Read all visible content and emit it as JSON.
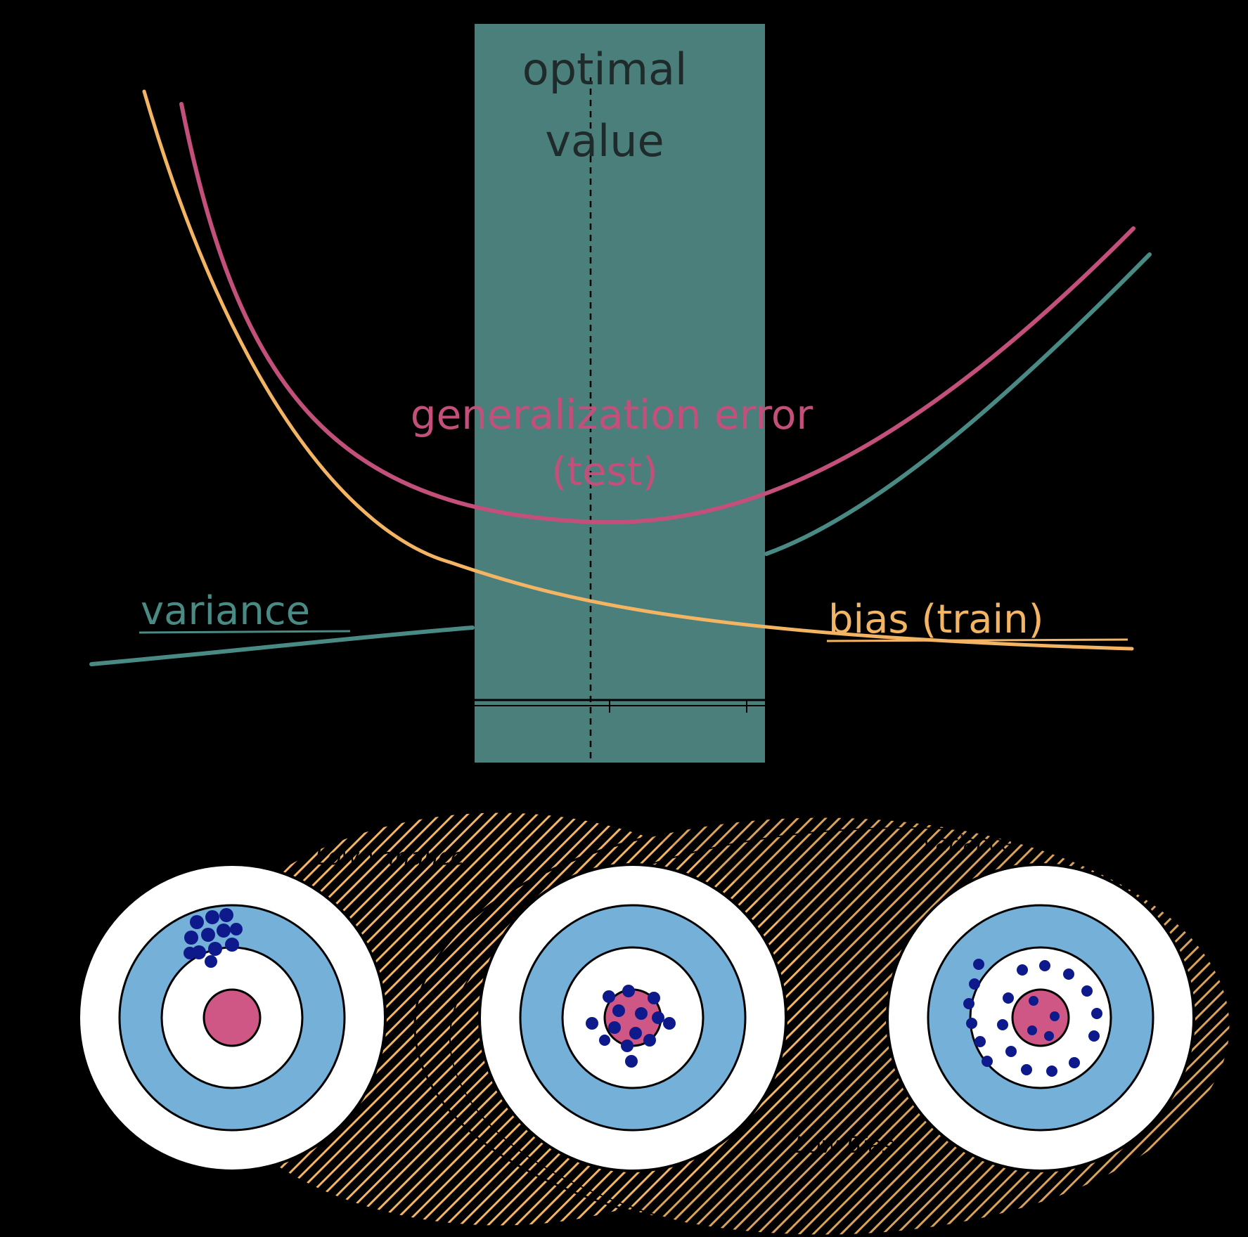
{
  "labels": {
    "optimal_line1": "optimal",
    "optimal_line2": "value",
    "generalization_line1": "generalization error",
    "generalization_line2": "(test)",
    "variance": "variance",
    "bias": "bias (train)",
    "low_variance": "Low Variance",
    "low_bias": "Low Bias",
    "bias_small": "Bias",
    "variance_small": "Variance"
  },
  "colors": {
    "background": "#000000",
    "band": "#4a7f7b",
    "generalization": "#c2507a",
    "bias_curve": "#f3b463",
    "variance_curve": "#4a8a85",
    "hatch": "#f3b463",
    "ring_outer": "#ffffff",
    "ring_middle": "#74b0d8",
    "bullseye": "#cf5785",
    "dots": "#0e1a8c"
  },
  "icons": [
    "target-icon",
    "target-icon",
    "target-icon"
  ]
}
